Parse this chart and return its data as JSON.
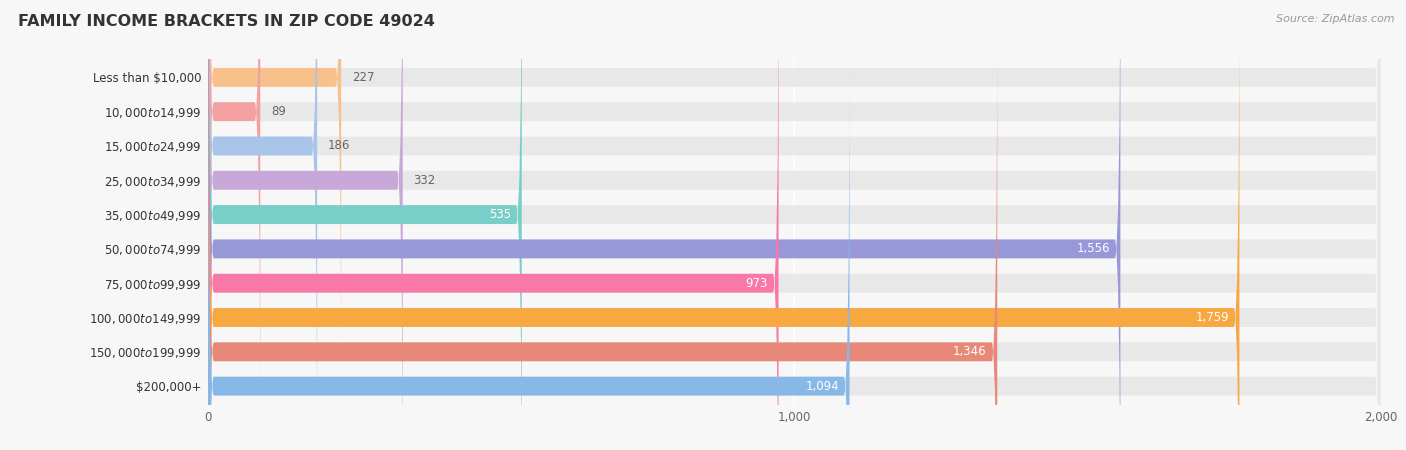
{
  "title": "FAMILY INCOME BRACKETS IN ZIP CODE 49024",
  "source": "Source: ZipAtlas.com",
  "categories": [
    "Less than $10,000",
    "$10,000 to $14,999",
    "$15,000 to $24,999",
    "$25,000 to $34,999",
    "$35,000 to $49,999",
    "$50,000 to $74,999",
    "$75,000 to $99,999",
    "$100,000 to $149,999",
    "$150,000 to $199,999",
    "$200,000+"
  ],
  "values": [
    227,
    89,
    186,
    332,
    535,
    1556,
    973,
    1759,
    1346,
    1094
  ],
  "colors": [
    "#F8C08A",
    "#F4A0A0",
    "#A8C4E8",
    "#C8A8D8",
    "#78CEC8",
    "#9898D8",
    "#F878A8",
    "#F8A840",
    "#E88878",
    "#88B8E8"
  ],
  "xlim_max": 2000,
  "xticks": [
    0,
    1000,
    2000
  ],
  "bar_height": 0.55,
  "background_color": "#f7f7f7",
  "bar_bg_color": "#e8e8e8",
  "label_color_inside": "#ffffff",
  "label_color_outside": "#666666",
  "title_color": "#333333",
  "source_color": "#999999",
  "grid_color": "#ffffff",
  "inside_threshold": 400
}
